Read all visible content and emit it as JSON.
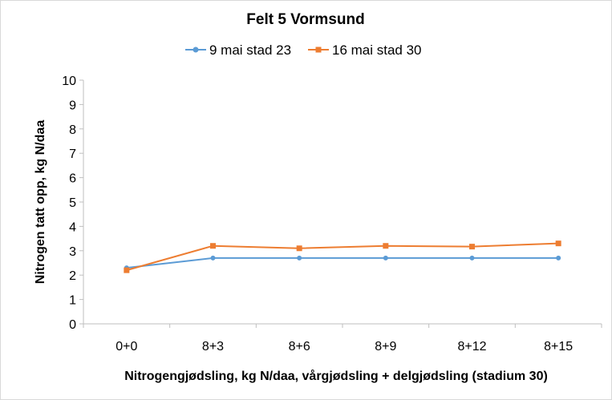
{
  "chart_data": {
    "type": "line",
    "title": "Felt 5 Vormsund",
    "xlabel": "Nitrogengjødsling, kg N/daa, vårgjødsling + delgjødsling (stadium 30)",
    "ylabel": "Nitrogen tatt opp, kg N/daa",
    "categories": [
      "0+0",
      "8+3",
      "8+6",
      "8+9",
      "8+12",
      "8+15"
    ],
    "ylim": [
      0,
      10
    ],
    "yticks": [
      0,
      1,
      2,
      3,
      4,
      5,
      6,
      7,
      8,
      9,
      10
    ],
    "grid": false,
    "legend_position": "top",
    "series": [
      {
        "name": "9 mai stad 23",
        "values": [
          2.3,
          2.7,
          2.7,
          2.7,
          2.7,
          2.7
        ],
        "color": "#5b9bd5",
        "marker": "circle"
      },
      {
        "name": "16 mai stad 30",
        "values": [
          2.2,
          3.2,
          3.1,
          3.2,
          3.17,
          3.3
        ],
        "color": "#ed7d31",
        "marker": "square"
      }
    ]
  }
}
